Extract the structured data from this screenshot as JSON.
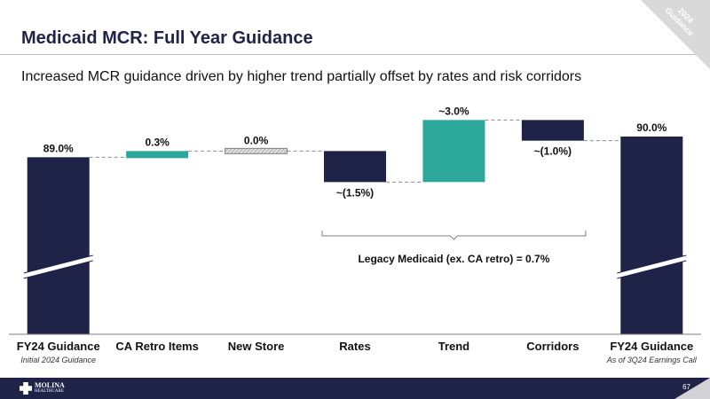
{
  "page": {
    "title": "Medicaid MCR: Full Year Guidance",
    "subtitle": "Increased MCR guidance driven by higher trend partially offset by rates and risk corridors",
    "corner_tag": "2024 Guidance",
    "page_number": "67",
    "logo": {
      "name": "MOLINA",
      "tagline": "HEALTHCARE"
    }
  },
  "chart_data": {
    "type": "waterfall",
    "title": "Medicaid MCR: Full Year Guidance",
    "categories": [
      "FY24 Guidance",
      "CA Retro Items",
      "New Store",
      "Rates",
      "Trend",
      "Corridors",
      "FY24 Guidance"
    ],
    "sublabels": [
      "Initial 2024 Guidance",
      "",
      "",
      "",
      "",
      "",
      "As of 3Q24 Earnings Call"
    ],
    "values": [
      89.0,
      0.3,
      0.0,
      -1.5,
      3.0,
      -1.0,
      90.0
    ],
    "kinds": [
      "total",
      "delta",
      "delta",
      "delta",
      "delta",
      "delta",
      "total"
    ],
    "data_labels": [
      "89.0%",
      "0.3%",
      "0.0%",
      "~(1.5%)",
      "~3.0%",
      "~(1.0%)",
      "90.0%"
    ],
    "colors": {
      "total": "#1f2347",
      "increase": "#2ca89a",
      "decrease": "#1f2347",
      "neutral": "#d0d0d0"
    },
    "axis_break": true,
    "annotation": {
      "text": "Legacy Medicaid (ex. CA retro) =  0.7%",
      "spans": [
        "Rates",
        "Corridors"
      ]
    }
  }
}
